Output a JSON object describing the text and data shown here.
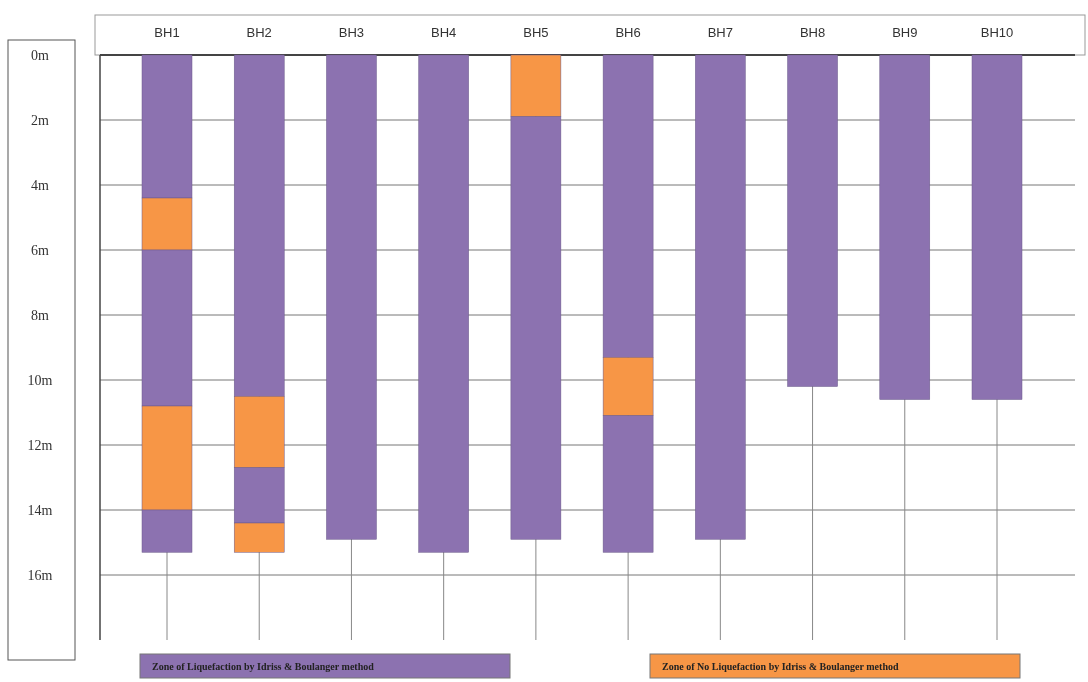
{
  "chart_data": {
    "type": "bar",
    "stacked": true,
    "categories": [
      "BH1",
      "BH2",
      "BH3",
      "BH4",
      "BH5",
      "BH6",
      "BH7",
      "BH8",
      "BH9",
      "BH10"
    ],
    "series": [
      {
        "name": "Zone of Liquefaction by Idriss & Boulanger method",
        "color": "#8c72b0",
        "values": [
          4.4,
          10.5,
          14.9,
          15.3,
          null,
          9.3,
          14.9,
          10.2,
          10.6,
          10.6
        ]
      },
      {
        "name": "Zone of No Liquefaction by Idriss & Boulanger method",
        "color": "#f79646",
        "values": [
          1.6,
          2.2,
          null,
          null,
          1.9,
          1.8,
          null,
          null,
          null,
          null
        ]
      },
      {
        "color": "#8c72b0",
        "values": [
          4.8,
          1.7,
          null,
          null,
          13.0,
          4.2,
          null,
          null,
          null,
          null
        ]
      },
      {
        "color": "#f79646",
        "values": [
          3.2,
          0.9,
          null,
          null,
          null,
          null,
          null,
          null,
          null,
          null
        ]
      },
      {
        "color": "#8c72b0",
        "values": [
          1.3,
          null,
          null,
          null,
          null,
          null,
          null,
          null,
          null,
          null
        ]
      }
    ],
    "ylim": [
      18,
      0
    ],
    "yticks": [
      {
        "value": 0,
        "label": "0m"
      },
      {
        "value": 2,
        "label": "2m"
      },
      {
        "value": 4,
        "label": "4m"
      },
      {
        "value": 6,
        "label": "6m"
      },
      {
        "value": 8,
        "label": "8m"
      },
      {
        "value": 10,
        "label": "10m"
      },
      {
        "value": 12,
        "label": "12m"
      },
      {
        "value": 14,
        "label": "14m"
      },
      {
        "value": 16,
        "label": "16m"
      }
    ],
    "grid": true,
    "legend": "bottom"
  }
}
